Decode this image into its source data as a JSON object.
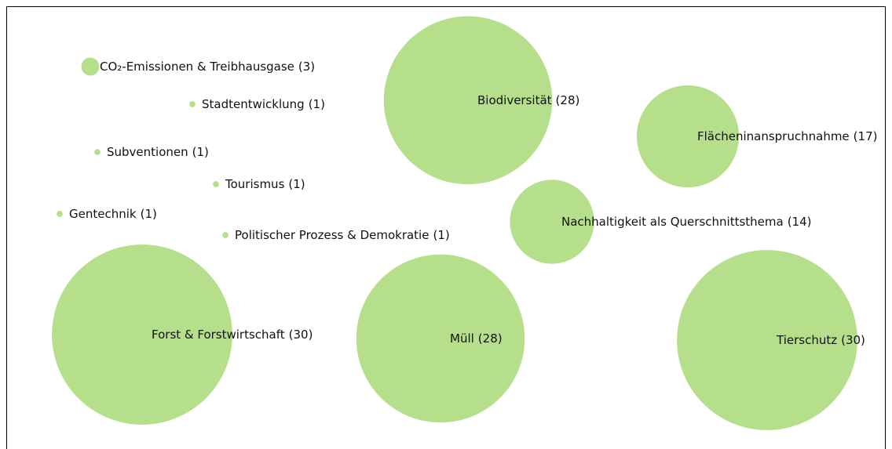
{
  "chart_data": {
    "type": "bubble",
    "color": "#b5df8a",
    "categories": [
      "CO₂-Emissionen & Treibhausgase",
      "Stadtentwicklung",
      "Subventionen",
      "Tourismus",
      "Gentechnik",
      "Politischer Prozess & Demokratie",
      "Biodiversität",
      "Flächeninanspruchnahme",
      "Nachhaltigkeit als Querschnittsthema",
      "Forst & Forstwirtschaft",
      "Müll",
      "Tierschutz"
    ],
    "values": [
      3,
      1,
      1,
      1,
      1,
      1,
      28,
      17,
      14,
      30,
      28,
      30
    ],
    "value_labels": [
      "(3)",
      "(1)",
      "(1)",
      "(1)",
      "(1)",
      "(1)",
      "(28)",
      "(17)",
      "(14)",
      "(30)",
      "(28)",
      "(30)"
    ]
  }
}
